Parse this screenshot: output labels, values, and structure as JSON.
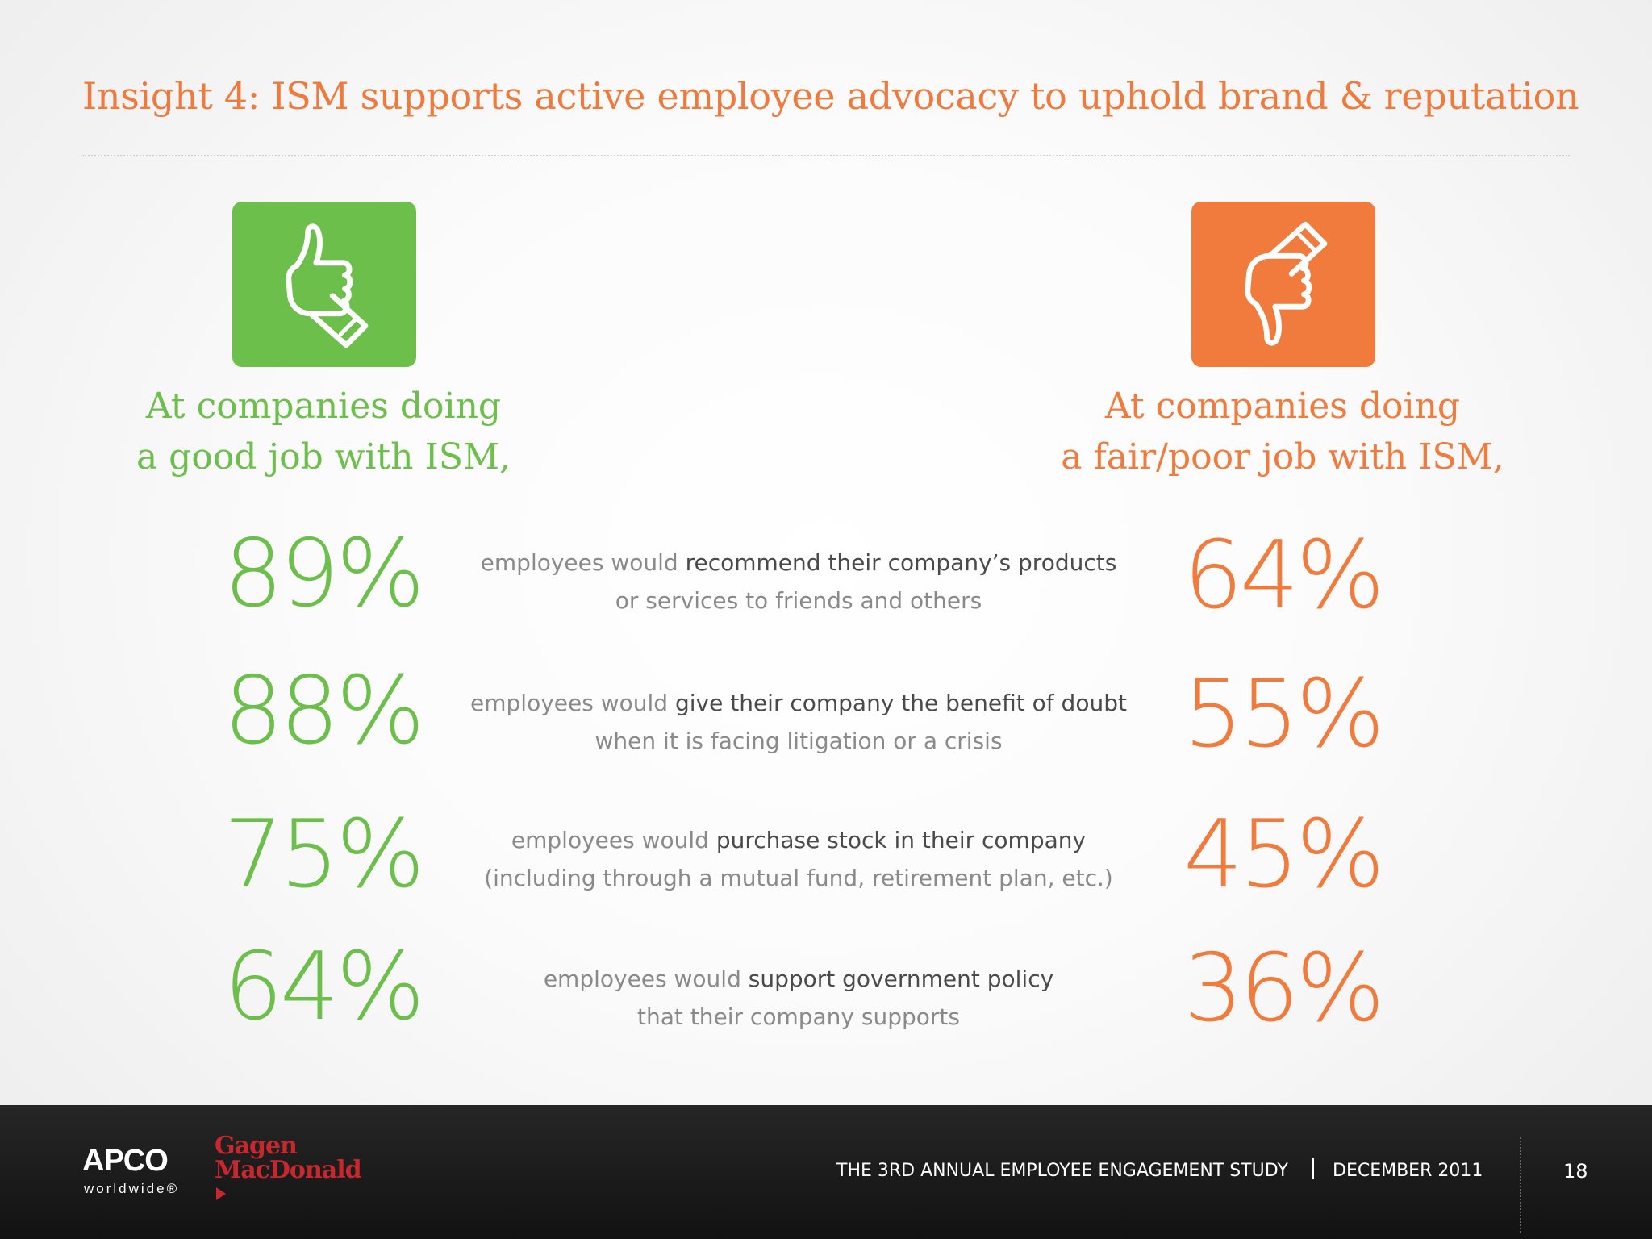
{
  "title": "Insight 4: ISM supports active employee advocacy to uphold brand & reputation",
  "good": {
    "heading_line1": "At companies doing",
    "heading_line2": "a good job with ISM,",
    "color": "#6cbf4b",
    "icon": "thumbs-up-icon"
  },
  "bad": {
    "heading_line1": "At companies doing",
    "heading_line2": "a fair/poor job with ISM,",
    "color": "#f07b3c",
    "icon": "thumbs-down-icon"
  },
  "rows": [
    {
      "good_pct": "89%",
      "bad_pct": "64%",
      "prefix": "employees would ",
      "emphasis": "recommend their company’s products",
      "line2": "or services to friends and others"
    },
    {
      "good_pct": "88%",
      "bad_pct": "55%",
      "prefix": "employees would ",
      "emphasis": "give their company the benefit of doubt",
      "line2": "when it is facing litigation or a crisis"
    },
    {
      "good_pct": "75%",
      "bad_pct": "45%",
      "prefix": "employees would ",
      "emphasis": "purchase stock in their company",
      "line2": "(including through a mutual fund, retirement plan, etc.)"
    },
    {
      "good_pct": "64%",
      "bad_pct": "36%",
      "prefix": "employees would ",
      "emphasis": "support government policy",
      "line2": "that their company supports"
    }
  ],
  "footer": {
    "apco": "APCO",
    "apco_sub": "worldwide®",
    "gagen_line1": "Gagen",
    "gagen_line2": "MacDonald",
    "study": "THE 3RD ANNUAL EMPLOYEE ENGAGEMENT STUDY",
    "date": "DECEMBER 2011",
    "page": "18"
  }
}
